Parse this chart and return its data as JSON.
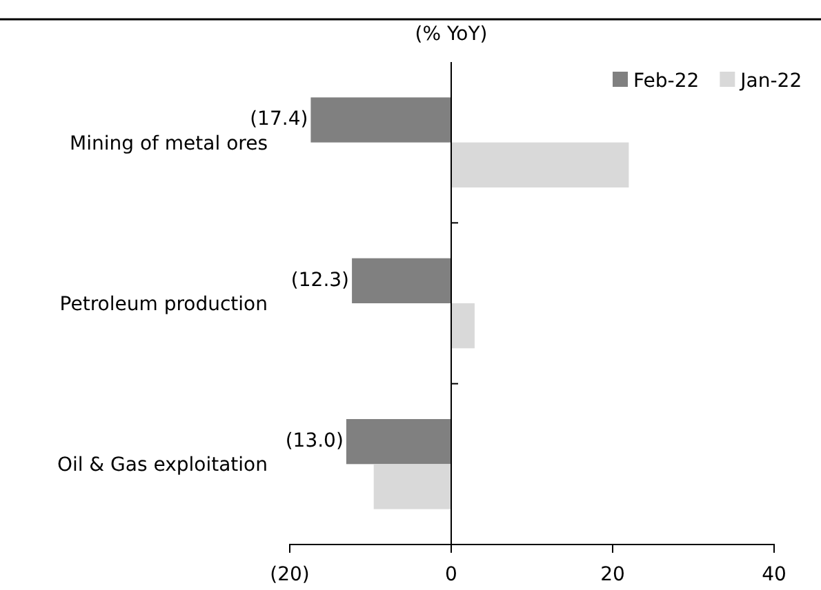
{
  "chart_data": {
    "type": "bar",
    "orientation": "horizontal",
    "xlabel": "(% YoY)",
    "categories": [
      "Mining of metal ores",
      "Petroleum production",
      "Oil & Gas exploitation"
    ],
    "series": [
      {
        "name": "Feb-22",
        "color": "#808080",
        "values": [
          -17.4,
          -12.3,
          -13.0
        ],
        "value_labels": [
          "(17.4)",
          "(12.3)",
          "(13.0)"
        ]
      },
      {
        "name": "Jan-22",
        "color": "#d9d9d9",
        "values": [
          22,
          2.9,
          -9.6
        ]
      }
    ],
    "xlim": [
      -20,
      40
    ],
    "xticks": [
      {
        "value": -20,
        "label": "(20)"
      },
      0,
      20,
      40
    ],
    "legend": "top right"
  }
}
